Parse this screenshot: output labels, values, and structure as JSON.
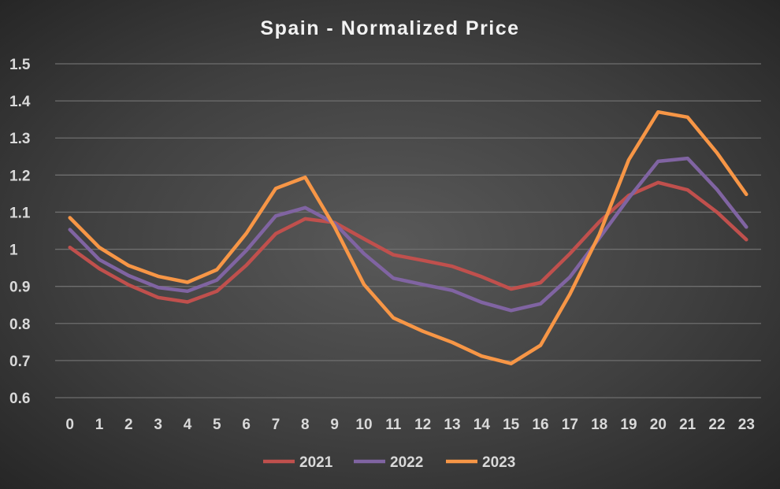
{
  "chart_data": {
    "type": "line",
    "title": "Spain - Normalized Price",
    "xlabel": "",
    "ylabel": "",
    "x": [
      0,
      1,
      2,
      3,
      4,
      5,
      6,
      7,
      8,
      9,
      10,
      11,
      12,
      13,
      14,
      15,
      16,
      17,
      18,
      19,
      20,
      21,
      22,
      23
    ],
    "yticks": [
      "0.6",
      "0.7",
      "0.8",
      "0.9",
      "1",
      "1.1",
      "1.2",
      "1.3",
      "1.4",
      "1.5"
    ],
    "ylim": [
      0.6,
      1.5
    ],
    "grid": true,
    "legend_position": "bottom",
    "series": [
      {
        "name": "2021",
        "color": "#c0504d",
        "values": [
          1.005,
          0.948,
          0.904,
          0.87,
          0.858,
          0.887,
          0.957,
          1.042,
          1.082,
          1.072,
          1.028,
          0.985,
          0.97,
          0.954,
          0.926,
          0.893,
          0.91,
          0.988,
          1.074,
          1.145,
          1.18,
          1.16,
          1.1,
          1.026
        ]
      },
      {
        "name": "2022",
        "color": "#8064a2",
        "values": [
          1.053,
          0.972,
          0.929,
          0.897,
          0.887,
          0.917,
          0.997,
          1.09,
          1.112,
          1.07,
          0.988,
          0.922,
          0.905,
          0.889,
          0.857,
          0.835,
          0.853,
          0.925,
          1.03,
          1.138,
          1.237,
          1.245,
          1.161,
          1.06
        ]
      },
      {
        "name": "2023",
        "color": "#f79646",
        "values": [
          1.085,
          1.005,
          0.956,
          0.927,
          0.911,
          0.945,
          1.043,
          1.164,
          1.194,
          1.06,
          0.905,
          0.815,
          0.779,
          0.749,
          0.712,
          0.692,
          0.741,
          0.879,
          1.04,
          1.241,
          1.37,
          1.356,
          1.26,
          1.148
        ]
      }
    ]
  }
}
